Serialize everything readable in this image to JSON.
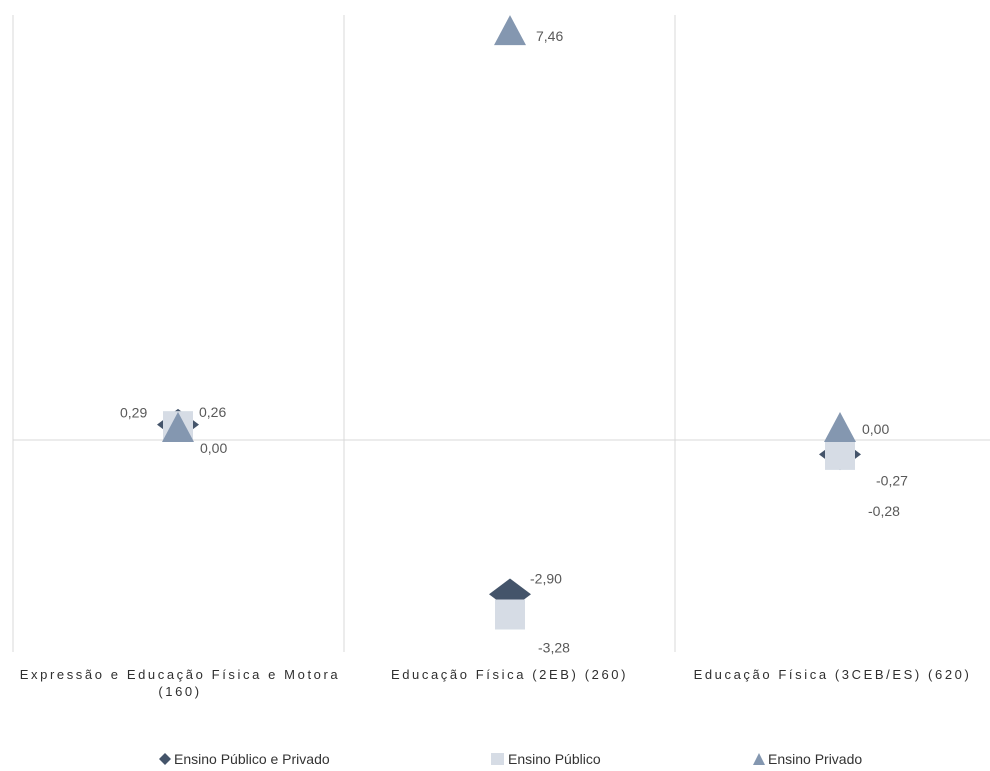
{
  "chart_data": {
    "type": "scatter",
    "categories": [
      "Expressão e Educação Física e Motora (160)",
      "Educação Física (2EB) (260)",
      "Educação Física (3CEB/ES) (620)"
    ],
    "series": [
      {
        "name": "Ensino Público e Privado",
        "values": [
          0.29,
          -2.9,
          -0.27
        ],
        "color": "#44546a",
        "marker": "diamond"
      },
      {
        "name": "Ensino Público",
        "values": [
          0.26,
          -3.28,
          -0.28
        ],
        "color": "#d6dce5",
        "marker": "square"
      },
      {
        "name": "Ensino Privado",
        "values": [
          0.0,
          7.46,
          0.0
        ],
        "color": "#8497b0",
        "marker": "triangle"
      }
    ],
    "data_labels": [
      [
        "0,29",
        "-2,90",
        "-0,27"
      ],
      [
        "0,26",
        "-3,28",
        "-0,28"
      ],
      [
        "0,00",
        "7,46",
        "0,00"
      ]
    ],
    "ylim": [
      -5,
      10
    ],
    "grid": true,
    "legend_position": "bottom",
    "axis_color": "#d9d9d9",
    "label_color": "#595959"
  }
}
